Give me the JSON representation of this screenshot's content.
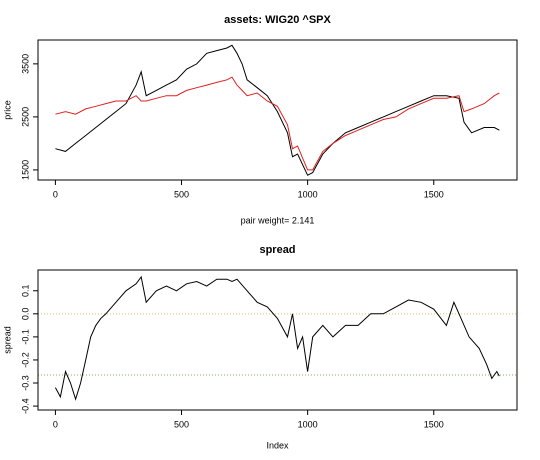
{
  "chart_data": [
    {
      "type": "line",
      "title": "assets: WIG20 ^SPX",
      "xlabel": "pair weight= 2.141",
      "ylabel": "price",
      "x": [
        0,
        40,
        80,
        120,
        160,
        200,
        240,
        280,
        320,
        340,
        360,
        400,
        440,
        480,
        520,
        560,
        600,
        640,
        680,
        700,
        720,
        740,
        760,
        800,
        840,
        880,
        920,
        940,
        960,
        1000,
        1020,
        1060,
        1100,
        1150,
        1200,
        1250,
        1300,
        1350,
        1400,
        1450,
        1500,
        1550,
        1600,
        1620,
        1650,
        1700,
        1740,
        1760
      ],
      "series": [
        {
          "name": "WIG20",
          "color": "#000000",
          "values": [
            1900,
            1850,
            2000,
            2150,
            2300,
            2450,
            2600,
            2750,
            3100,
            3350,
            2900,
            3000,
            3100,
            3200,
            3400,
            3500,
            3700,
            3750,
            3800,
            3850,
            3700,
            3500,
            3200,
            3050,
            2900,
            2600,
            2200,
            1750,
            1800,
            1400,
            1450,
            1800,
            2000,
            2200,
            2300,
            2400,
            2500,
            2600,
            2700,
            2800,
            2900,
            2900,
            2850,
            2400,
            2200,
            2300,
            2300,
            2250
          ]
        },
        {
          "name": "^SPX",
          "color": "#e02020",
          "values": [
            2550,
            2600,
            2550,
            2650,
            2700,
            2750,
            2800,
            2800,
            2900,
            2800,
            2800,
            2850,
            2900,
            2900,
            3000,
            3050,
            3100,
            3150,
            3200,
            3250,
            3100,
            3000,
            2900,
            2950,
            2800,
            2700,
            2350,
            1900,
            1950,
            1500,
            1500,
            1850,
            2000,
            2150,
            2250,
            2350,
            2450,
            2500,
            2650,
            2750,
            2850,
            2850,
            2900,
            2600,
            2650,
            2750,
            2900,
            2950
          ]
        }
      ],
      "xlim": [
        -69,
        1830
      ],
      "ylim": [
        1310,
        3950
      ],
      "xticks": [
        0,
        500,
        1000,
        1500
      ],
      "yticks": [
        1500,
        2500,
        3500
      ]
    },
    {
      "type": "line",
      "title": "spread",
      "xlabel": "Index",
      "ylabel": "spread",
      "x": [
        0,
        20,
        40,
        60,
        80,
        100,
        120,
        140,
        160,
        180,
        200,
        240,
        280,
        320,
        340,
        360,
        400,
        440,
        480,
        520,
        560,
        600,
        640,
        680,
        700,
        720,
        760,
        800,
        840,
        880,
        920,
        940,
        960,
        980,
        1000,
        1020,
        1060,
        1100,
        1150,
        1200,
        1250,
        1300,
        1350,
        1400,
        1450,
        1500,
        1550,
        1580,
        1600,
        1640,
        1680,
        1710,
        1730,
        1750,
        1760
      ],
      "series": [
        {
          "name": "spread",
          "color": "#000000",
          "values": [
            -0.32,
            -0.36,
            -0.25,
            -0.3,
            -0.37,
            -0.3,
            -0.2,
            -0.1,
            -0.05,
            -0.02,
            0.0,
            0.05,
            0.1,
            0.13,
            0.16,
            0.05,
            0.1,
            0.12,
            0.1,
            0.13,
            0.14,
            0.12,
            0.15,
            0.15,
            0.14,
            0.15,
            0.1,
            0.05,
            0.03,
            -0.02,
            -0.1,
            0.0,
            -0.15,
            -0.1,
            -0.25,
            -0.1,
            -0.05,
            -0.1,
            -0.05,
            -0.05,
            0.0,
            0.0,
            0.03,
            0.06,
            0.05,
            0.02,
            -0.05,
            0.05,
            0.0,
            -0.1,
            -0.15,
            -0.22,
            -0.28,
            -0.25,
            -0.27
          ]
        }
      ],
      "hlines": [
        {
          "value": 0,
          "color": "#e8c060"
        },
        {
          "value": -0.265,
          "color": "#80b060"
        }
      ],
      "xlim": [
        -69,
        1830
      ],
      "ylim": [
        -0.417,
        0.19
      ],
      "xticks": [
        0,
        500,
        1000,
        1500
      ],
      "yticks": [
        0.1,
        {
          "value": 0,
          "label": "0.0"
        },
        -0.1,
        -0.2,
        -0.3,
        -0.4
      ]
    }
  ]
}
